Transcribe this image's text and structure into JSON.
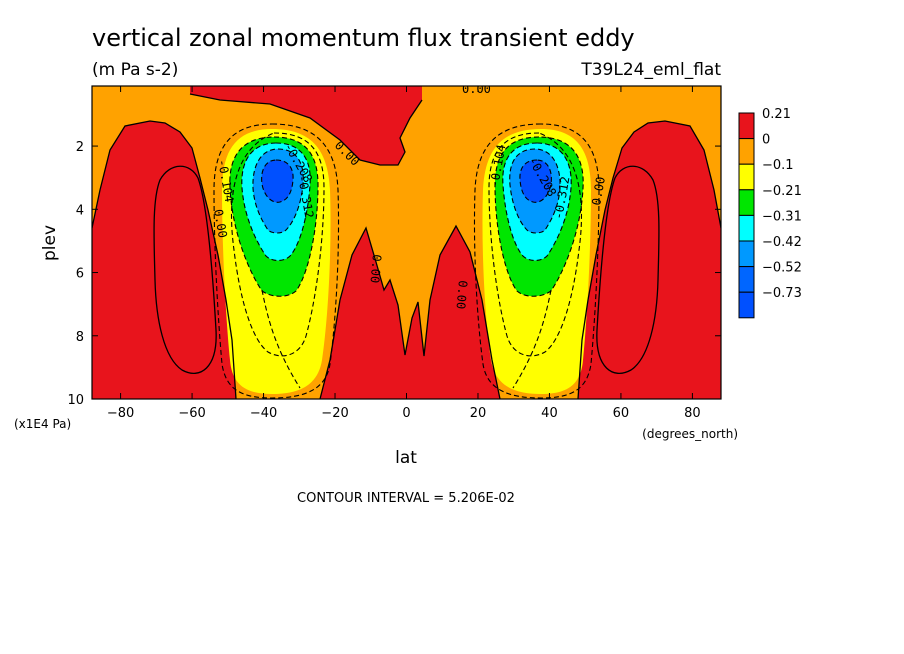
{
  "chart_data": {
    "type": "heatmap",
    "title": "vertical zonal momentum flux transient eddy",
    "units": "(m Pa s-2)",
    "run_label": "T39L24_eml_flat",
    "xlabel": "lat",
    "xunits": "(degrees_north)",
    "ylabel": "plev",
    "yunits": "(x1E4 Pa)",
    "xlim": [
      -88,
      88
    ],
    "ylim": [
      10,
      0.1
    ],
    "x_ticks": [
      -80,
      -60,
      -40,
      -20,
      0,
      20,
      40,
      60,
      80
    ],
    "y_ticks": [
      2,
      4,
      6,
      8,
      10
    ],
    "contour_interval_text": "CONTOUR INTERVAL = 5.206E-02",
    "colorbar": {
      "levels": [
        "0.21",
        "0",
        "-0.1",
        "-0.21",
        "-0.31",
        "-0.42",
        "-0.52",
        "-0.73"
      ],
      "colors": [
        "#e8141c",
        "#ffa200",
        "#ffff00",
        "#00e600",
        "#00ffff",
        "#0099ff",
        "#0066ff",
        "#0050ff"
      ]
    },
    "contour_labels": [
      "0.00",
      "-0.104",
      "-0.208",
      "-0.312",
      "0.00",
      "-0.104",
      "-0.208",
      "-0.312",
      "0.00",
      "0.00",
      "0.00",
      "0.00"
    ]
  }
}
